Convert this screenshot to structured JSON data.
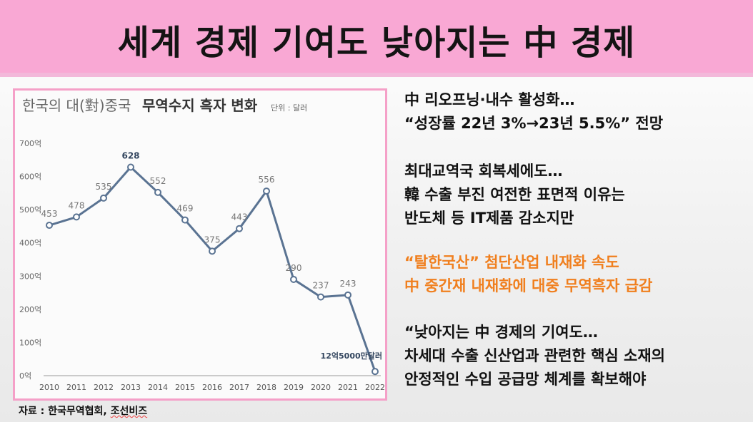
{
  "title": "세계 경제 기여도 낮아지는 中 경제",
  "chart_data": {
    "type": "line",
    "title": "한국의 대(對)중국 무역수지 흑자 변화",
    "title_light": "한국의 대(對)중국",
    "title_bold": "무역수지 흑자 변화",
    "unit_note": "단위 : 달러",
    "x": [
      "2010",
      "2011",
      "2012",
      "2013",
      "2014",
      "2015",
      "2016",
      "2017",
      "2018",
      "2019",
      "2020",
      "2021",
      "2022"
    ],
    "values": [
      453,
      478,
      535,
      628,
      552,
      469,
      375,
      443,
      556,
      290,
      237,
      243,
      12.5
    ],
    "data_labels": [
      "453",
      "478",
      "535",
      "628",
      "552",
      "469",
      "375",
      "443",
      "556",
      "290",
      "237",
      "243",
      "12억5000만달러"
    ],
    "y_ticks": [
      "0억",
      "100억",
      "200억",
      "300억",
      "400억",
      "500억",
      "600억",
      "700억"
    ],
    "ylim": [
      0,
      700
    ],
    "line_color": "#5a7392",
    "grid": false
  },
  "source": {
    "prefix": "자료 : 한국무역협회, ",
    "name": "조선비즈"
  },
  "blocks": [
    {
      "lines": [
        "中 리오프닝·내수 활성화…",
        "“성장률 22년 3%→23년 5.5%” 전망"
      ],
      "color": "#111111"
    },
    {
      "lines": [
        "최대교역국 회복세에도…",
        "韓 수출 부진 여전한 표면적 이유는",
        "반도체 등 IT제품 감소지만"
      ],
      "color": "#111111"
    },
    {
      "lines": [
        "“탈한국산” 첨단산업 내재화 속도",
        "中 중간재 내재화에 대중 무역흑자 급감"
      ],
      "color": "#f07f1e"
    },
    {
      "lines": [
        "“낮아지는 中 경제의 기여도…",
        "차세대 수출 신산업과 관련한 핵심 소재의",
        "안정적인 수입 공급망 체계를 확보해야"
      ],
      "color": "#111111"
    }
  ]
}
